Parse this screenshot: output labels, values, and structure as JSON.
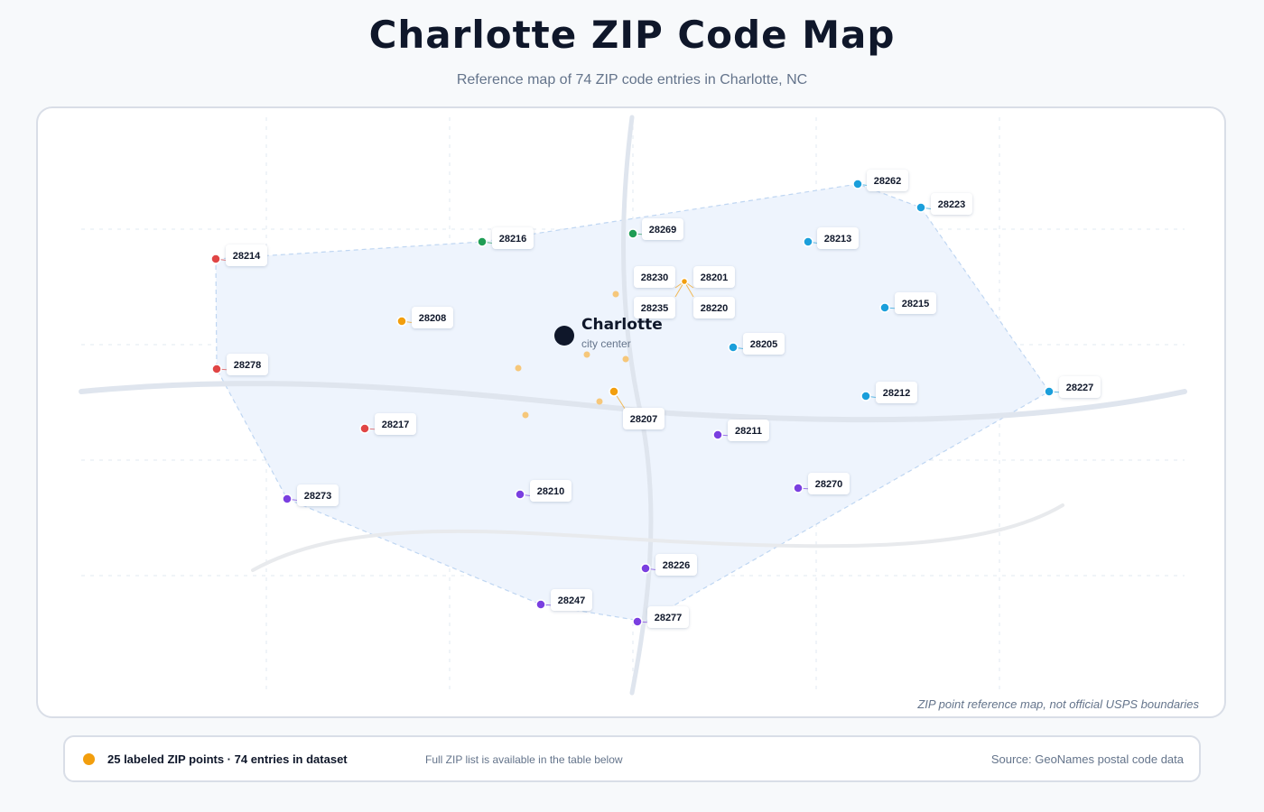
{
  "title": "Charlotte ZIP Code Map",
  "subtitle": "Reference map of 74 ZIP code entries in Charlotte, NC",
  "map": {
    "note": "ZIP point reference map, not official USPS boundaries",
    "city_label": "Charlotte",
    "city_sublabel": "city center",
    "colors": {
      "orange": "#f29e0d",
      "light_orange": "#f6c77a",
      "green": "#1f9d55",
      "blue": "#1b9fdb",
      "red": "#e04545",
      "purple": "#7a3fe0",
      "city": "#0f172a",
      "hull_fill": "#eef4fd",
      "hull_stroke": "#bfd6f2",
      "road": "#dfe5ee",
      "road_light": "#e8eaed"
    },
    "zip_points": [
      {
        "zip": "28262",
        "color": "blue"
      },
      {
        "zip": "28223",
        "color": "blue"
      },
      {
        "zip": "28269",
        "color": "green"
      },
      {
        "zip": "28216",
        "color": "green"
      },
      {
        "zip": "28213",
        "color": "blue"
      },
      {
        "zip": "28214",
        "color": "red"
      },
      {
        "zip": "28230",
        "color": "orange"
      },
      {
        "zip": "28201",
        "color": "orange"
      },
      {
        "zip": "28235",
        "color": "orange"
      },
      {
        "zip": "28220",
        "color": "orange"
      },
      {
        "zip": "28215",
        "color": "blue"
      },
      {
        "zip": "28208",
        "color": "orange"
      },
      {
        "zip": "28205",
        "color": "blue"
      },
      {
        "zip": "28278",
        "color": "red"
      },
      {
        "zip": "28227",
        "color": "blue"
      },
      {
        "zip": "28212",
        "color": "blue"
      },
      {
        "zip": "28207",
        "color": "orange"
      },
      {
        "zip": "28217",
        "color": "red"
      },
      {
        "zip": "28211",
        "color": "purple"
      },
      {
        "zip": "28273",
        "color": "purple"
      },
      {
        "zip": "28210",
        "color": "purple"
      },
      {
        "zip": "28270",
        "color": "purple"
      },
      {
        "zip": "28226",
        "color": "purple"
      },
      {
        "zip": "28247",
        "color": "purple"
      },
      {
        "zip": "28277",
        "color": "purple"
      }
    ]
  },
  "footer": {
    "legend_text": "25 labeled ZIP points · 74 entries in dataset",
    "note": "Full ZIP list is available in the table below",
    "source": "Source: GeoNames postal code data"
  }
}
